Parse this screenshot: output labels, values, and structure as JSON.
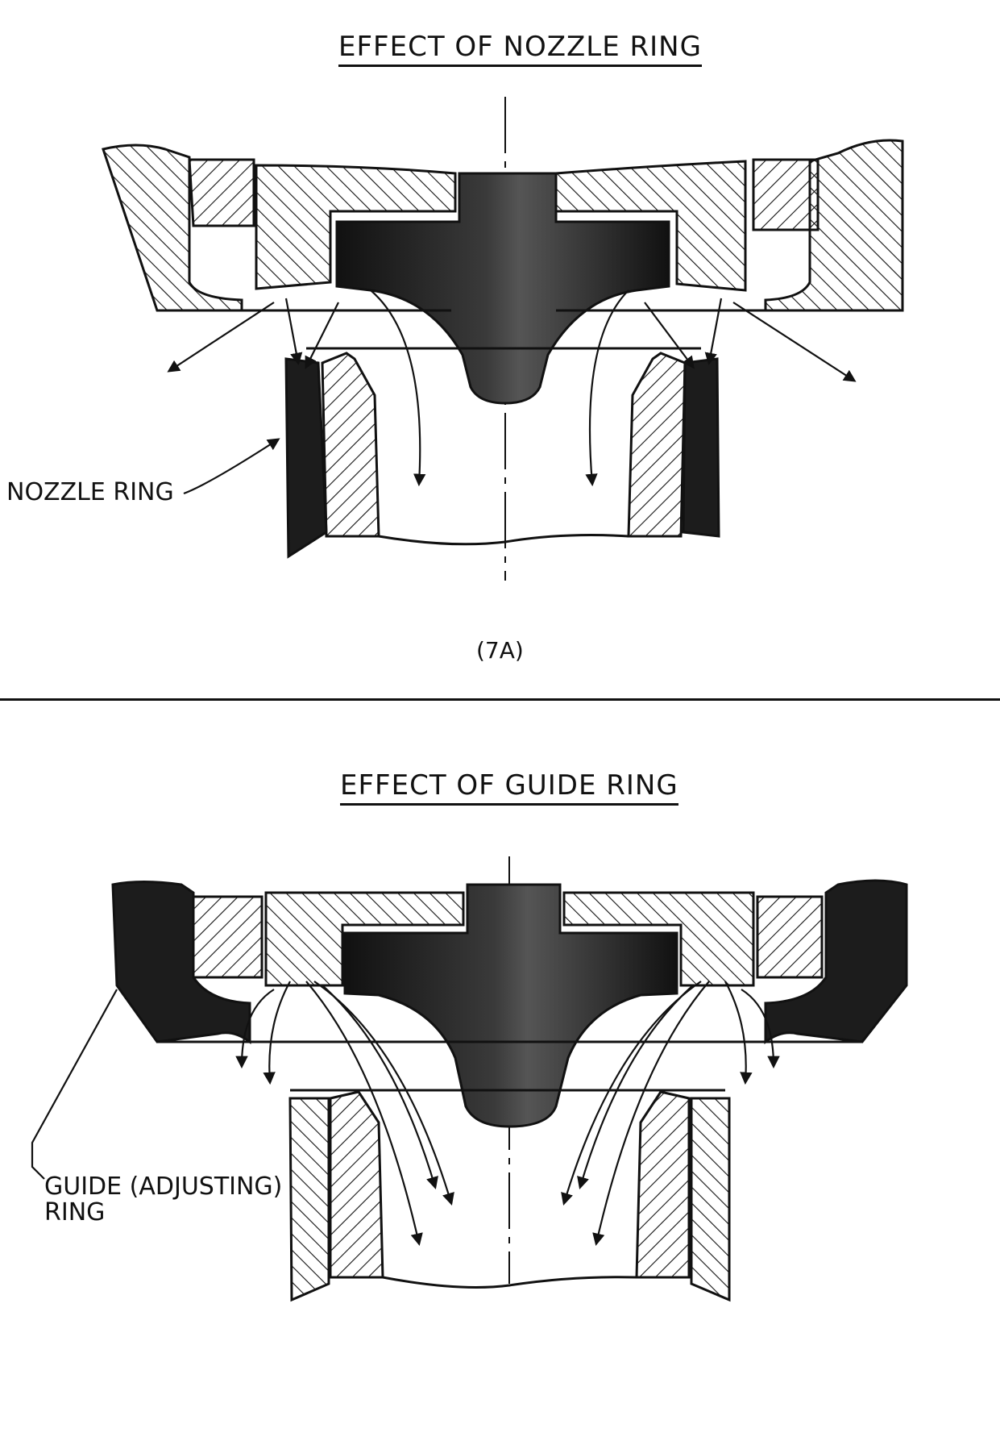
{
  "panel_a": {
    "title": "EFFECT OF NOZZLE RING",
    "callout": "NOZZLE RING",
    "caption": "(7A)"
  },
  "panel_b": {
    "title": "EFFECT OF GUIDE RING",
    "callout_line1": "GUIDE (ADJUSTING)",
    "callout_line2": "RING"
  },
  "colors": {
    "ink": "#111111",
    "paper": "#ffffff",
    "solid_part": "#1c1c1c"
  }
}
